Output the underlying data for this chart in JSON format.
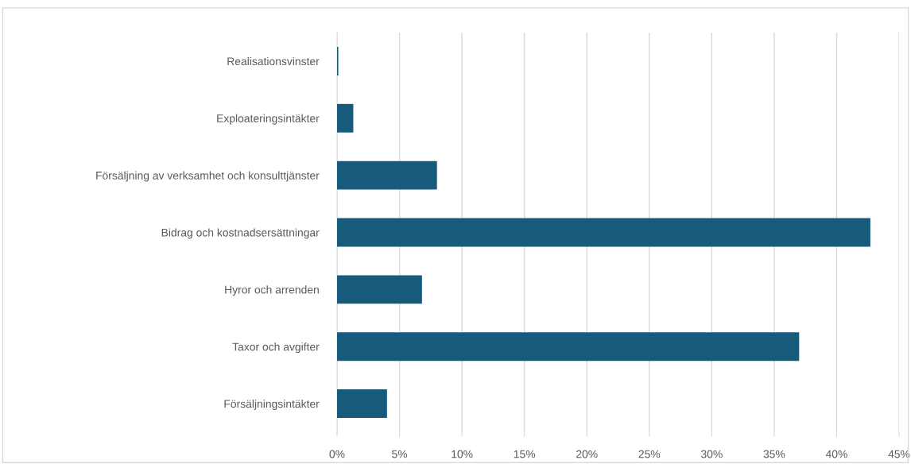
{
  "chart_data": {
    "type": "bar",
    "orientation": "horizontal",
    "categories": [
      "Realisationsvinster",
      "Exploateringsintäkter",
      "Försäljning av verksamhet och konsulttjänster",
      "Bidrag och kostnadsersättningar",
      "Hyror och arrenden",
      "Taxor och avgifter",
      "Försäljningsintäkter"
    ],
    "values": [
      0.1,
      1.3,
      8.0,
      42.7,
      6.8,
      37.0,
      4.0
    ],
    "color": "#165a7c",
    "xlim": [
      0,
      45
    ],
    "xticks": [
      {
        "value": 0,
        "label": "0%"
      },
      {
        "value": 5,
        "label": "5%"
      },
      {
        "value": 10,
        "label": "10%"
      },
      {
        "value": 15,
        "label": "15%"
      },
      {
        "value": 20,
        "label": "20%"
      },
      {
        "value": 25,
        "label": "25%"
      },
      {
        "value": 30,
        "label": "30%"
      },
      {
        "value": 35,
        "label": "35%"
      },
      {
        "value": 40,
        "label": "40%"
      },
      {
        "value": 45,
        "label": "45%"
      }
    ],
    "grid": "x",
    "legend": false
  }
}
